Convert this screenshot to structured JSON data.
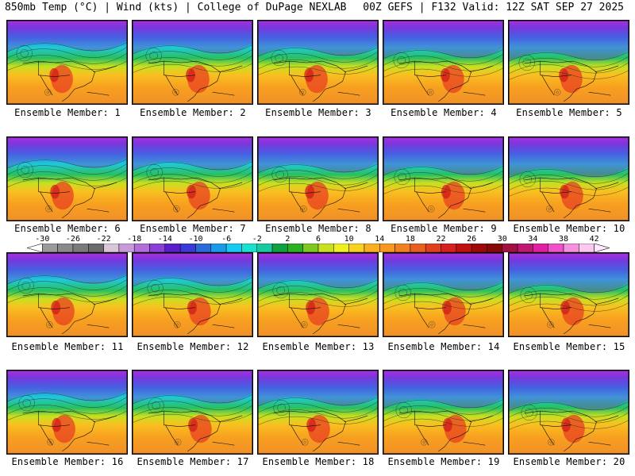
{
  "header": {
    "left": "850mb Temp (°C) | Wind (kts) | College of DuPage NEXLAB",
    "right": "00Z GEFS | F132 Valid: 12Z SAT SEP 27 2025"
  },
  "members": [
    "Ensemble Member: 1",
    "Ensemble Member: 2",
    "Ensemble Member: 3",
    "Ensemble Member: 4",
    "Ensemble Member: 5",
    "Ensemble Member: 6",
    "Ensemble Member: 7",
    "Ensemble Member: 8",
    "Ensemble Member: 9",
    "Ensemble Member: 10",
    "Ensemble Member: 11",
    "Ensemble Member: 12",
    "Ensemble Member: 13",
    "Ensemble Member: 14",
    "Ensemble Member: 15",
    "Ensemble Member: 16",
    "Ensemble Member: 17",
    "Ensemble Member: 18",
    "Ensemble Member: 19",
    "Ensemble Member: 20"
  ],
  "colorbar": {
    "tick_labels": [
      "-30",
      "-26",
      "-22",
      "-18",
      "-14",
      "-10",
      "-6",
      "-2",
      "2",
      "6",
      "10",
      "14",
      "18",
      "22",
      "26",
      "30",
      "34",
      "38",
      "42"
    ],
    "colors": [
      "#ffffff",
      "#9a9a9a",
      "#8a8a8a",
      "#7a7a7a",
      "#6a6a6a",
      "#d9c6d9",
      "#c99ad9",
      "#b26fd9",
      "#8a3fd9",
      "#5a1fc9",
      "#3a3ad9",
      "#2a6ad9",
      "#1a9ae9",
      "#1ac9f2",
      "#1ae0d0",
      "#1ac9a0",
      "#10a040",
      "#2ab020",
      "#80c820",
      "#c8e020",
      "#f0f020",
      "#f8d020",
      "#f8b020",
      "#f89820",
      "#f08020",
      "#e86020",
      "#e04020",
      "#d82020",
      "#c01010",
      "#a00808",
      "#880808",
      "#a01040",
      "#c01870",
      "#e020a0",
      "#f050c8",
      "#f890e0",
      "#fcc8f0",
      "#ffe8ff"
    ]
  }
}
